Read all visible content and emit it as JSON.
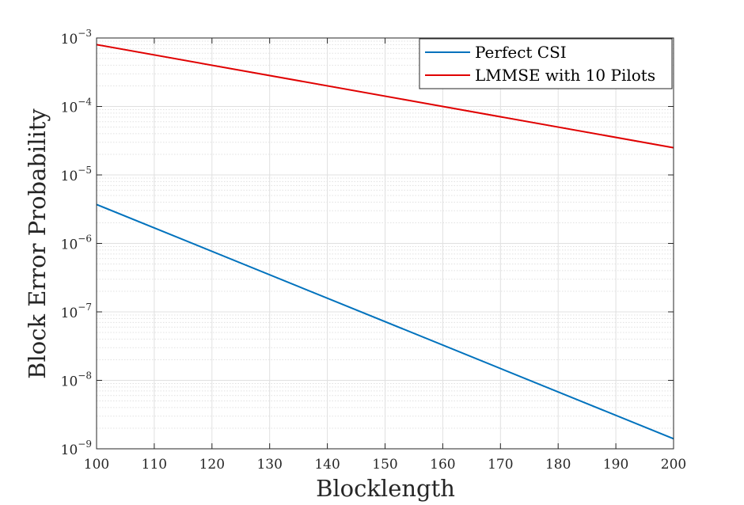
{
  "chart_data": {
    "type": "line",
    "title": "",
    "xlabel": "Blocklength",
    "ylabel": "Block Error Probability",
    "yscale": "log",
    "xlim": [
      100,
      200
    ],
    "ylim": [
      1e-09,
      0.001
    ],
    "grid": true,
    "minor_grid": true,
    "legend_position": "top-right",
    "x_ticks": [
      100,
      110,
      120,
      130,
      140,
      150,
      160,
      170,
      180,
      190,
      200
    ],
    "x_tick_labels": [
      "100",
      "110",
      "120",
      "130",
      "140",
      "150",
      "160",
      "170",
      "180",
      "190",
      "200"
    ],
    "y_ticks": [
      {
        "value": 0.001,
        "base": "10",
        "exp": "−3"
      },
      {
        "value": 0.0001,
        "base": "10",
        "exp": "−4"
      },
      {
        "value": 1e-05,
        "base": "10",
        "exp": "−5"
      },
      {
        "value": 1e-06,
        "base": "10",
        "exp": "−6"
      },
      {
        "value": 1e-07,
        "base": "10",
        "exp": "−7"
      },
      {
        "value": 1e-08,
        "base": "10",
        "exp": "−8"
      },
      {
        "value": 1e-09,
        "base": "10",
        "exp": "−9"
      }
    ],
    "x": [
      100,
      200
    ],
    "series": [
      {
        "name": "Perfect CSI",
        "color": "#0072bd",
        "values": [
          3.7e-06,
          1.4e-09
        ]
      },
      {
        "name": "LMMSE with 10 Pilots",
        "color": "#e00000",
        "values": [
          0.0008,
          2.5e-05
        ]
      }
    ]
  }
}
